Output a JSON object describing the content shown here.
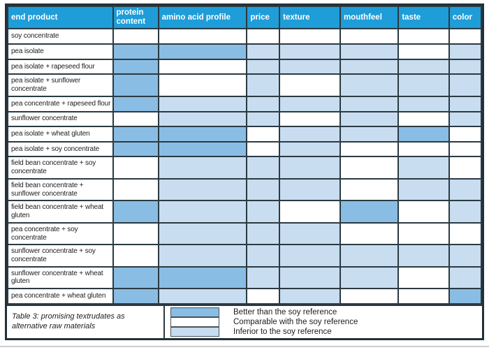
{
  "table": {
    "caption": "Table 3: promising textrudates as alternative raw materials",
    "columns": [
      "end product",
      "protein content",
      "amino acid profile",
      "price",
      "texture",
      "mouthfeel",
      "taste",
      "color"
    ],
    "rows": [
      {
        "label": "soy concentrate",
        "ratings": [
          "comparable",
          "comparable",
          "comparable",
          "comparable",
          "comparable",
          "comparable",
          "comparable"
        ]
      },
      {
        "label": "pea isolate",
        "ratings": [
          "better",
          "better",
          "inferior",
          "inferior",
          "inferior",
          "comparable",
          "inferior"
        ]
      },
      {
        "label": "pea isolate + rapeseed flour",
        "ratings": [
          "better",
          "comparable",
          "inferior",
          "inferior",
          "inferior",
          "inferior",
          "inferior"
        ]
      },
      {
        "label": "pea isolate + sunflower concentrate",
        "ratings": [
          "better",
          "comparable",
          "inferior",
          "comparable",
          "inferior",
          "inferior",
          "inferior"
        ]
      },
      {
        "label": "pea concentrate + rapeseed flour",
        "ratings": [
          "better",
          "inferior",
          "inferior",
          "inferior",
          "inferior",
          "inferior",
          "inferior"
        ]
      },
      {
        "label": "sunflower concentrate",
        "ratings": [
          "comparable",
          "inferior",
          "inferior",
          "comparable",
          "inferior",
          "comparable",
          "inferior"
        ]
      },
      {
        "label": "pea isolate + wheat gluten",
        "ratings": [
          "better",
          "better",
          "comparable",
          "inferior",
          "inferior",
          "better",
          "comparable"
        ]
      },
      {
        "label": "pea isolate + soy concentrate",
        "ratings": [
          "better",
          "better",
          "comparable",
          "inferior",
          "comparable",
          "comparable",
          "comparable"
        ]
      },
      {
        "label": "field bean concentrate + soy concentrate",
        "ratings": [
          "comparable",
          "inferior",
          "inferior",
          "inferior",
          "comparable",
          "inferior",
          "comparable"
        ]
      },
      {
        "label": "field bean concentrate + sunflower concentrate",
        "ratings": [
          "comparable",
          "inferior",
          "inferior",
          "inferior",
          "comparable",
          "inferior",
          "inferior"
        ]
      },
      {
        "label": "field bean concentrate + wheat gluten",
        "ratings": [
          "better",
          "inferior",
          "inferior",
          "comparable",
          "better",
          "comparable",
          "inferior"
        ]
      },
      {
        "label": "pea concentrate + soy concentrate",
        "ratings": [
          "comparable",
          "inferior",
          "inferior",
          "inferior",
          "comparable",
          "comparable",
          "comparable"
        ]
      },
      {
        "label": "sunflower concentrate + soy concentrate",
        "ratings": [
          "comparable",
          "inferior",
          "inferior",
          "inferior",
          "inferior",
          "inferior",
          "inferior"
        ]
      },
      {
        "label": "sunflower concentrate + wheat gluten",
        "ratings": [
          "better",
          "better",
          "inferior",
          "inferior",
          "inferior",
          "comparable",
          "inferior"
        ]
      },
      {
        "label": "pea concentrate + wheat gluten",
        "ratings": [
          "better",
          "inferior",
          "comparable",
          "inferior",
          "comparable",
          "comparable",
          "better"
        ]
      }
    ]
  },
  "legend": {
    "items": [
      {
        "key": "better",
        "label": "Better than the soy reference",
        "color": "#8abde4"
      },
      {
        "key": "comparable",
        "label": "Comparable with the soy reference",
        "color": "#ffffff"
      },
      {
        "key": "inferior",
        "label": "Inferior to the soy reference",
        "color": "#c9ddf1"
      }
    ]
  },
  "colors": {
    "header_bg": "#1e9dd8",
    "header_text": "#ffffff",
    "better": "#8abde4",
    "comparable": "#ffffff",
    "inferior": "#c9ddf1",
    "grid": "#2b3a42",
    "frame": "#223039"
  }
}
